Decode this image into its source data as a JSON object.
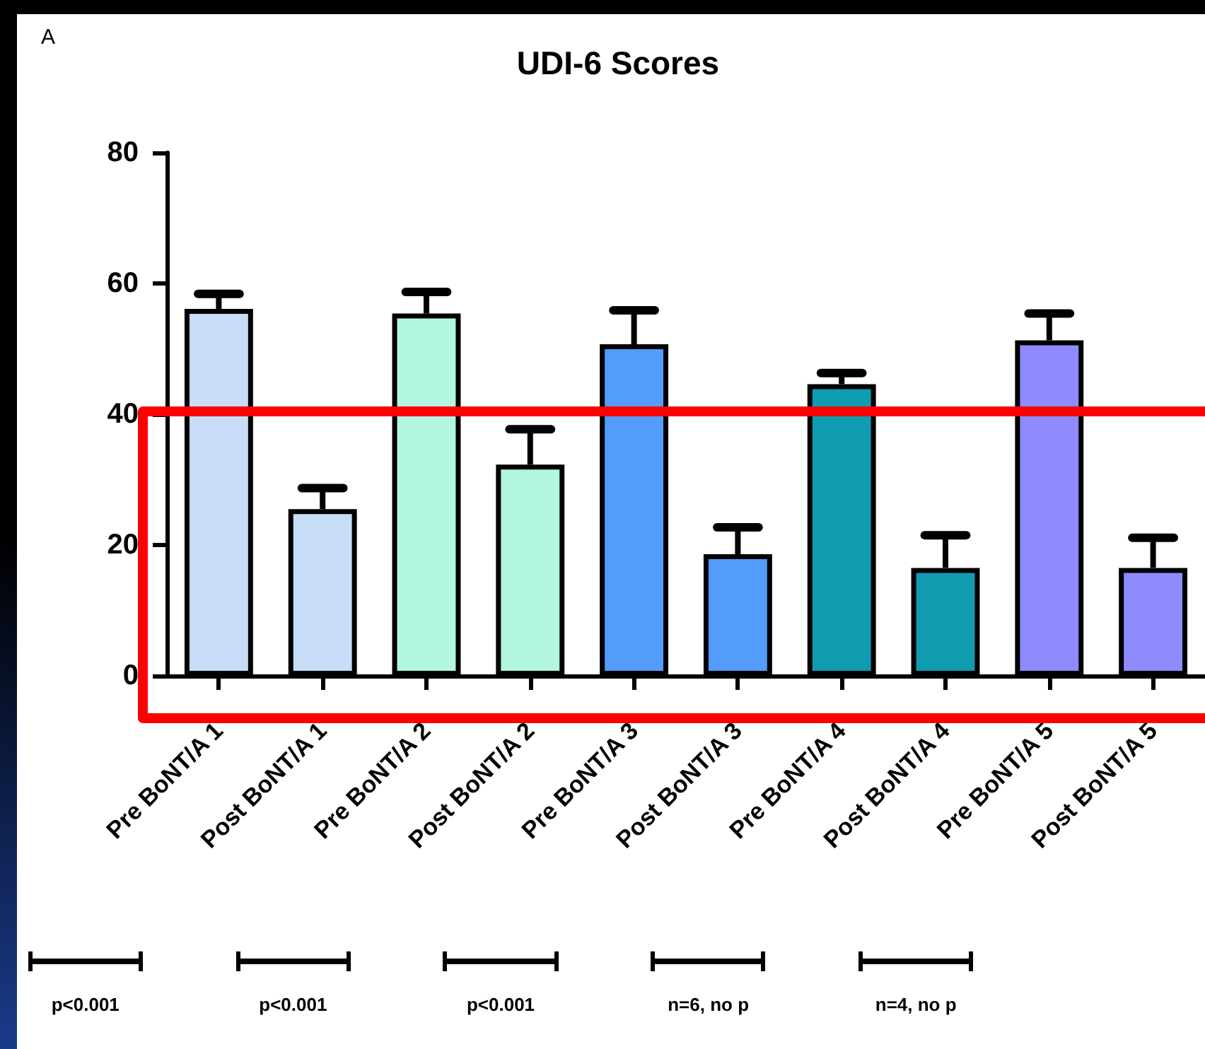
{
  "chart_data": {
    "type": "bar",
    "title": "UDI-6 Scores",
    "categories": [
      "Pre BoNT/A 1",
      "Post BoNT/A 1",
      "Pre BoNT/A 2",
      "Post BoNT/A 2",
      "Pre BoNT/A 3",
      "Post BoNT/A 3",
      "Pre BoNT/A 4",
      "Post BoNT/A 4",
      "Pre BoNT/A 5",
      "Post BoNT/A 5"
    ],
    "values": [
      56.1,
      25.5,
      55.4,
      32.3,
      50.7,
      18.6,
      44.6,
      16.5,
      51.3,
      16.5
    ],
    "errors": [
      [
        56.1,
        58.4
      ],
      [
        25.5,
        28.7
      ],
      [
        55.4,
        58.7
      ],
      [
        32.3,
        37.7
      ],
      [
        50.7,
        55.9
      ],
      [
        18.6,
        22.7
      ],
      [
        44.6,
        46.3
      ],
      [
        16.5,
        21.5
      ],
      [
        51.3,
        55.4
      ],
      [
        16.5,
        21.1
      ]
    ],
    "colors": [
      "#c6dcf7",
      "#c6dcf7",
      "#b2f5e0",
      "#b2f5e0",
      "#539cfc",
      "#539cfc",
      "#0f9bb0",
      "#0f9bb0",
      "#8e8bfc",
      "#8e8bfc"
    ],
    "ylim": [
      0,
      80
    ],
    "yticks": [
      0,
      20,
      40,
      60,
      80
    ],
    "grid": false,
    "annotations": [
      "A",
      "p<0.001",
      "p<0.001",
      "p<0.001",
      "n=6, no p",
      "n=4, no p"
    ]
  }
}
